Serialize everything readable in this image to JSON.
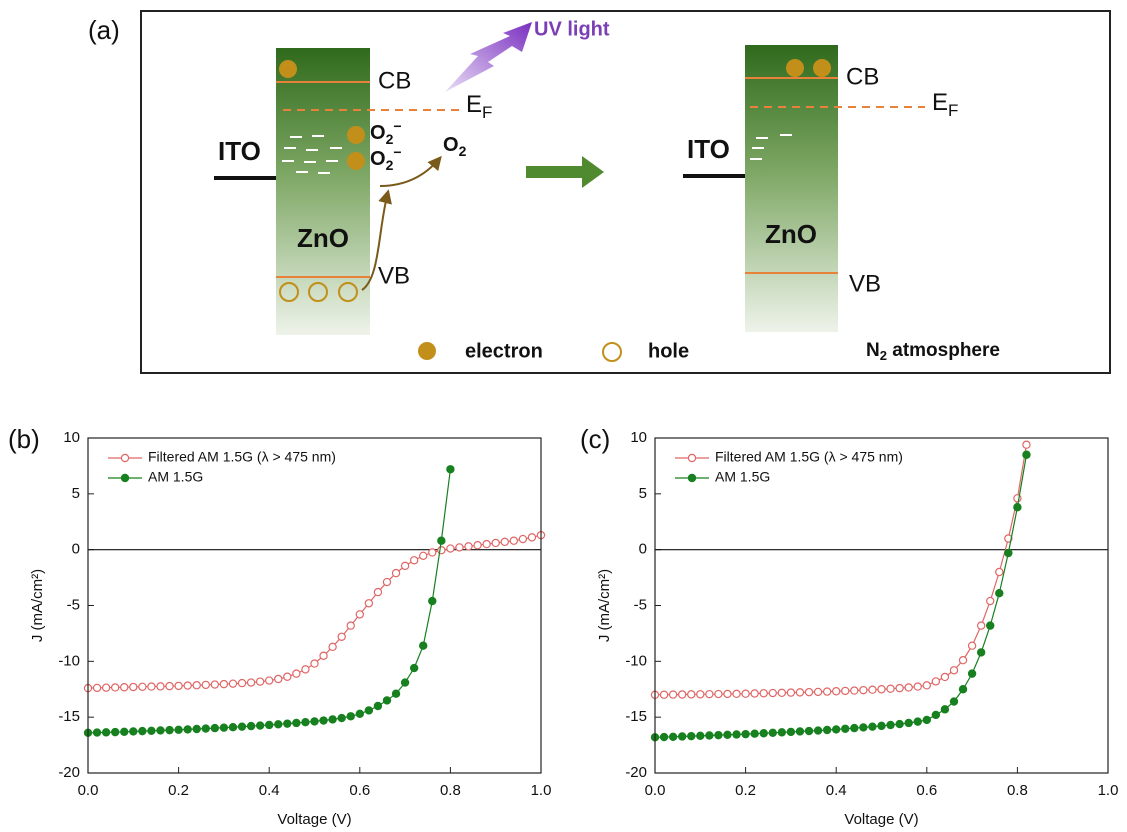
{
  "diagram": {
    "label": "(a)",
    "uv_light": "UV light",
    "left": {
      "cb": "CB",
      "ef": "E",
      "ef_sub": "F",
      "ito": "ITO",
      "zno": "ZnO",
      "vb": "VB",
      "species": [
        {
          "base": "O",
          "sub": "2",
          "sup": "−"
        },
        {
          "base": "O",
          "sub": "2",
          "sup": "−"
        },
        {
          "base": "O",
          "sub": "2"
        }
      ]
    },
    "right": {
      "cb": "CB",
      "ef": "E",
      "ef_sub": "F",
      "ito": "ITO",
      "zno": "ZnO",
      "vb": "VB"
    },
    "legend": {
      "electron": "electron",
      "hole": "hole",
      "atmosphere_base": "N",
      "atmosphere_sub": "2",
      "atmosphere_rest": " atmosphere"
    }
  },
  "chart_data": [
    {
      "type": "line",
      "panel_label": "(b)",
      "xlabel": "Voltage (V)",
      "ylabel": "J (mA/cm²)",
      "x": [
        0,
        0.02,
        0.04,
        0.06,
        0.08,
        0.1,
        0.12,
        0.14,
        0.16,
        0.18,
        0.2,
        0.22,
        0.24,
        0.26,
        0.28,
        0.3,
        0.32,
        0.34,
        0.36,
        0.38,
        0.4,
        0.42,
        0.44,
        0.46,
        0.48,
        0.5,
        0.52,
        0.54,
        0.56,
        0.58,
        0.6,
        0.62,
        0.64,
        0.66,
        0.68,
        0.7,
        0.72,
        0.74,
        0.76,
        0.78,
        0.8,
        0.82,
        0.84,
        0.86,
        0.88,
        0.9,
        0.92,
        0.94,
        0.96,
        0.98,
        1.0
      ],
      "series": [
        {
          "name": "Filtered AM 1.5G (λ > 475 nm)",
          "color": "#e06666",
          "marker": "open",
          "values": [
            -12.4,
            -12.38,
            -12.36,
            -12.34,
            -12.32,
            -12.3,
            -12.28,
            -12.26,
            -12.24,
            -12.22,
            -12.2,
            -12.17,
            -12.14,
            -12.11,
            -12.08,
            -12.04,
            -12.0,
            -11.95,
            -11.9,
            -11.82,
            -11.72,
            -11.58,
            -11.38,
            -11.1,
            -10.72,
            -10.2,
            -9.5,
            -8.7,
            -7.8,
            -6.8,
            -5.8,
            -4.8,
            -3.8,
            -2.9,
            -2.1,
            -1.45,
            -0.95,
            -0.55,
            -0.25,
            -0.05,
            0.1,
            0.2,
            0.3,
            0.4,
            0.5,
            0.6,
            0.7,
            0.8,
            0.95,
            1.1,
            1.3
          ]
        },
        {
          "name": "AM 1.5G",
          "color": "#17801f",
          "marker": "filled",
          "values": [
            -16.4,
            -16.38,
            -16.36,
            -16.34,
            -16.31,
            -16.28,
            -16.25,
            -16.22,
            -16.19,
            -16.16,
            -16.13,
            -16.1,
            -16.06,
            -16.02,
            -15.98,
            -15.94,
            -15.9,
            -15.85,
            -15.8,
            -15.75,
            -15.7,
            -15.64,
            -15.58,
            -15.52,
            -15.45,
            -15.38,
            -15.3,
            -15.2,
            -15.08,
            -14.92,
            -14.7,
            -14.4,
            -14.0,
            -13.5,
            -12.9,
            -11.9,
            -10.6,
            -8.6,
            -4.6,
            0.8,
            7.2,
            null,
            null,
            null,
            null,
            null,
            null,
            null,
            null,
            null,
            null
          ]
        }
      ],
      "xlim": [
        0,
        1
      ],
      "ylim": [
        -20,
        10
      ],
      "xticks": [
        {
          "value": 0,
          "label": "0.0"
        },
        0.2,
        0.4,
        0.6,
        0.8,
        {
          "value": 1,
          "label": "1.0"
        }
      ],
      "yticks": [
        -20,
        -15,
        -10,
        -5,
        0,
        5,
        10
      ],
      "hline": 0,
      "legend": "upper left"
    },
    {
      "type": "line",
      "panel_label": "(c)",
      "xlabel": "Voltage (V)",
      "ylabel": "J (mA/cm²)",
      "x": [
        0,
        0.02,
        0.04,
        0.06,
        0.08,
        0.1,
        0.12,
        0.14,
        0.16,
        0.18,
        0.2,
        0.22,
        0.24,
        0.26,
        0.28,
        0.3,
        0.32,
        0.34,
        0.36,
        0.38,
        0.4,
        0.42,
        0.44,
        0.46,
        0.48,
        0.5,
        0.52,
        0.54,
        0.56,
        0.58,
        0.6,
        0.62,
        0.64,
        0.66,
        0.68,
        0.7,
        0.72,
        0.74,
        0.76,
        0.78,
        0.8,
        0.82
      ],
      "series": [
        {
          "name": "Filtered AM 1.5G (λ > 475 nm)",
          "color": "#e06666",
          "marker": "open",
          "values": [
            -13.0,
            -12.99,
            -12.98,
            -12.97,
            -12.96,
            -12.95,
            -12.94,
            -12.93,
            -12.92,
            -12.91,
            -12.9,
            -12.88,
            -12.86,
            -12.84,
            -12.82,
            -12.8,
            -12.78,
            -12.76,
            -12.74,
            -12.71,
            -12.68,
            -12.65,
            -12.62,
            -12.58,
            -12.54,
            -12.5,
            -12.45,
            -12.4,
            -12.34,
            -12.26,
            -12.15,
            -11.8,
            -11.4,
            -10.8,
            -9.9,
            -8.6,
            -6.8,
            -4.6,
            -2.0,
            1.0,
            4.6,
            9.4
          ]
        },
        {
          "name": "AM 1.5G",
          "color": "#17801f",
          "marker": "filled",
          "values": [
            -16.8,
            -16.78,
            -16.76,
            -16.73,
            -16.7,
            -16.67,
            -16.64,
            -16.61,
            -16.58,
            -16.55,
            -16.52,
            -16.48,
            -16.44,
            -16.4,
            -16.36,
            -16.32,
            -16.28,
            -16.24,
            -16.2,
            -16.15,
            -16.1,
            -16.04,
            -15.98,
            -15.92,
            -15.85,
            -15.78,
            -15.7,
            -15.62,
            -15.52,
            -15.4,
            -15.25,
            -14.8,
            -14.3,
            -13.6,
            -12.5,
            -11.1,
            -9.2,
            -6.8,
            -3.9,
            -0.3,
            3.8,
            8.5
          ]
        }
      ],
      "xlim": [
        0,
        1
      ],
      "ylim": [
        -20,
        10
      ],
      "xticks": [
        {
          "value": 0,
          "label": "0.0"
        },
        0.2,
        0.4,
        0.6,
        0.8,
        {
          "value": 1,
          "label": "1.0"
        }
      ],
      "yticks": [
        -20,
        -15,
        -10,
        -5,
        0,
        5,
        10
      ],
      "hline": 0,
      "legend": "upper left"
    }
  ]
}
